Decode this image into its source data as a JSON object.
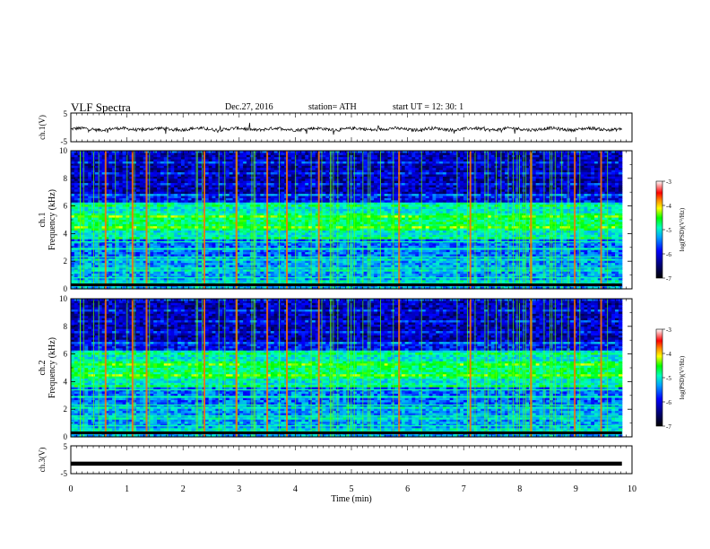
{
  "header": {
    "title": "VLF  Spectra",
    "date": "Dec.27, 2016",
    "station": "station= ATH",
    "start_ut": "start  UT  =    12: 30: 1"
  },
  "chart_data": [
    {
      "type": "line",
      "ylabel": "ch.1(V)",
      "ylim": [
        -5,
        5
      ],
      "y_ticks": [
        "5",
        "-5"
      ],
      "description_values": "noisy waveform near 0 V with spikes",
      "xlim": [
        0,
        10
      ],
      "color": "#000000"
    },
    {
      "type": "heatmap",
      "ylabel": "ch.1\nFrequency  (kHz)",
      "ylabel_lines": [
        "ch.1",
        "Frequency  (kHz)"
      ],
      "xlim": [
        0,
        10
      ],
      "ylim": [
        0,
        10
      ],
      "y_ticks": [
        "0",
        "2",
        "4",
        "6",
        "8",
        "10"
      ],
      "colorbar": {
        "label": "log(PSD)(V²/Hz)",
        "ticks": [
          "-3",
          "-4",
          "-5",
          "-6",
          "-7"
        ],
        "range": [
          -7,
          -3
        ]
      },
      "data_end_min": 9.82
    },
    {
      "type": "heatmap",
      "ylabel": "ch.2\nFrequency  (kHz)",
      "ylabel_lines": [
        "ch.2",
        "Frequency  (kHz)"
      ],
      "xlim": [
        0,
        10
      ],
      "ylim": [
        0,
        10
      ],
      "y_ticks": [
        "0",
        "2",
        "4",
        "6",
        "8",
        "10"
      ],
      "colorbar": {
        "label": "log(PSD)(V²/Hz)",
        "ticks": [
          "-3",
          "-4",
          "-5",
          "-6",
          "-7"
        ],
        "range": [
          -7,
          -3
        ]
      },
      "data_end_min": 9.82
    },
    {
      "type": "line",
      "ylabel": "ch.3(V)",
      "ylim": [
        -5,
        5
      ],
      "y_ticks": [
        "5",
        "-5"
      ],
      "value": -1.4,
      "xlim": [
        0,
        10
      ],
      "xlabel": "Time  (min)",
      "x_ticks": [
        "0",
        "1",
        "2",
        "3",
        "4",
        "5",
        "6",
        "7",
        "8",
        "9",
        "10"
      ],
      "color": "#000000"
    }
  ]
}
